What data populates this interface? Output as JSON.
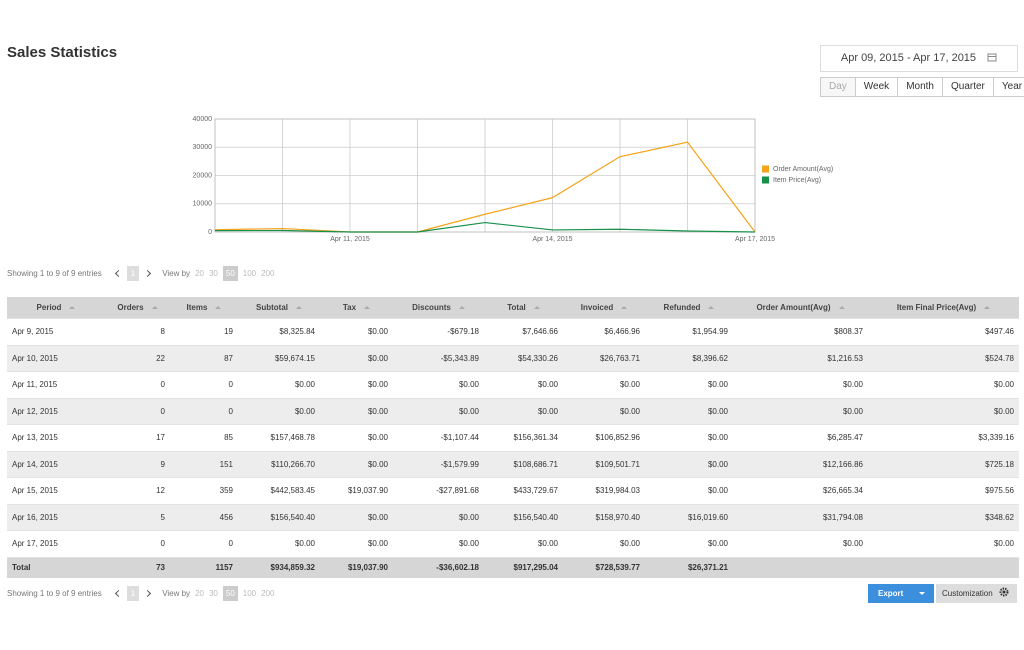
{
  "header": {
    "title": "Sales Statistics",
    "date_range": "Apr 09, 2015 - Apr 17, 2015",
    "periods": [
      "Day",
      "Week",
      "Month",
      "Quarter",
      "Year"
    ],
    "active_period": 0
  },
  "chart_data": {
    "type": "line",
    "categories": [
      null,
      null,
      "Apr 11, 2015",
      null,
      null,
      "Apr 14, 2015",
      null,
      null,
      "Apr 17, 2015"
    ],
    "series": [
      {
        "name": "Order Amount(Avg)",
        "color": "#f5a31a",
        "values": [
          808.37,
          1216.53,
          0,
          0,
          6285.47,
          12166.86,
          26665.34,
          31794.08,
          0
        ]
      },
      {
        "name": "Item Price(Avg)",
        "color": "#17904a",
        "values": [
          497.46,
          524.78,
          0,
          0,
          3339.16,
          725.18,
          975.56,
          348.62,
          0
        ]
      }
    ],
    "ylim": [
      0,
      40000
    ],
    "yticks": [
      0,
      10000,
      20000,
      30000,
      40000
    ],
    "grid": true,
    "legend": "right"
  },
  "pagination": {
    "summary": "Showing 1 to 9 of 9 entries",
    "page": "1",
    "view_by": "View by",
    "sizes": [
      "20",
      "30",
      "50",
      "100",
      "200"
    ],
    "active_size": 2
  },
  "table": {
    "columns": [
      "Period",
      "Orders",
      "Items",
      "Subtotal",
      "Tax",
      "Discounts",
      "Total",
      "Invoiced",
      "Refunded",
      "Order Amount(Avg)",
      "Item Final Price(Avg)"
    ],
    "rows": [
      [
        "Apr 9, 2015",
        "8",
        "19",
        "$8,325.84",
        "$0.00",
        "-$679.18",
        "$7,646.66",
        "$6,466.96",
        "$1,954.99",
        "$808.37",
        "$497.46"
      ],
      [
        "Apr 10, 2015",
        "22",
        "87",
        "$59,674.15",
        "$0.00",
        "-$5,343.89",
        "$54,330.26",
        "$26,763.71",
        "$8,396.62",
        "$1,216.53",
        "$524.78"
      ],
      [
        "Apr 11, 2015",
        "0",
        "0",
        "$0.00",
        "$0.00",
        "$0.00",
        "$0.00",
        "$0.00",
        "$0.00",
        "$0.00",
        "$0.00"
      ],
      [
        "Apr 12, 2015",
        "0",
        "0",
        "$0.00",
        "$0.00",
        "$0.00",
        "$0.00",
        "$0.00",
        "$0.00",
        "$0.00",
        "$0.00"
      ],
      [
        "Apr 13, 2015",
        "17",
        "85",
        "$157,468.78",
        "$0.00",
        "-$1,107.44",
        "$156,361.34",
        "$106,852.96",
        "$0.00",
        "$6,285.47",
        "$3,339.16"
      ],
      [
        "Apr 14, 2015",
        "9",
        "151",
        "$110,266.70",
        "$0.00",
        "-$1,579.99",
        "$108,686.71",
        "$109,501.71",
        "$0.00",
        "$12,166.86",
        "$725.18"
      ],
      [
        "Apr 15, 2015",
        "12",
        "359",
        "$442,583.45",
        "$19,037.90",
        "-$27,891.68",
        "$433,729.67",
        "$319,984.03",
        "$0.00",
        "$26,665.34",
        "$975.56"
      ],
      [
        "Apr 16, 2015",
        "5",
        "456",
        "$156,540.40",
        "$0.00",
        "$0.00",
        "$156,540.40",
        "$158,970.40",
        "$16,019.60",
        "$31,794.08",
        "$348.62"
      ],
      [
        "Apr 17, 2015",
        "0",
        "0",
        "$0.00",
        "$0.00",
        "$0.00",
        "$0.00",
        "$0.00",
        "$0.00",
        "$0.00",
        "$0.00"
      ]
    ],
    "total": [
      "Total",
      "73",
      "1157",
      "$934,859.32",
      "$19,037.90",
      "-$36,602.18",
      "$917,295.04",
      "$728,539.77",
      "$26,371.21"
    ]
  },
  "buttons": {
    "export": "Export",
    "customization": "Customization"
  }
}
